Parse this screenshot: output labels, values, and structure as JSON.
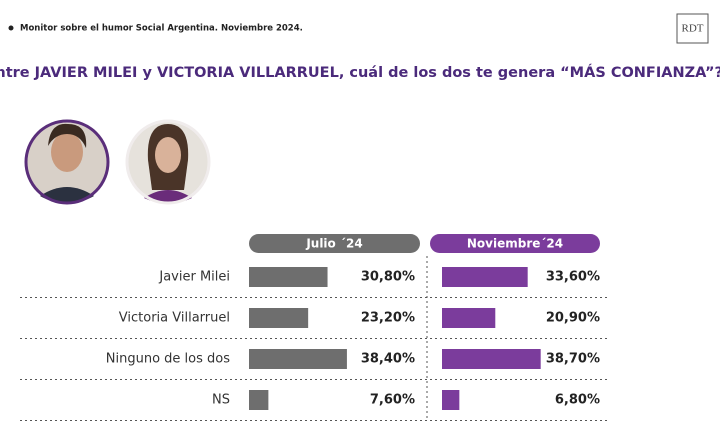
{
  "header": "Monitor sobre el humor Social Argentina. Noviembre 2024.",
  "logo": "RDT",
  "chart_data": {
    "type": "bar",
    "orientation": "horizontal",
    "title": "¿Entre JAVIER MILEI y VICTORIA VILLARRUEL, cuál de los dos te genera “MÁS CONFIANZA”?",
    "categories": [
      "Javier Milei",
      "Victoria Villarruel",
      "Ninguno de los dos",
      "NS"
    ],
    "series": [
      {
        "name": "Julio ´24",
        "color": "#6e6e6e",
        "values": [
          30.8,
          23.2,
          38.4,
          7.6
        ],
        "value_labels": [
          "30,80%",
          "23,20%",
          "38,40%",
          "7,60%"
        ]
      },
      {
        "name": "Noviembre´24",
        "color": "#7b3c9c",
        "values": [
          33.6,
          20.9,
          38.7,
          6.8
        ],
        "value_labels": [
          "33,60%",
          "20,90%",
          "38,70%",
          "6,80%"
        ]
      }
    ]
  }
}
